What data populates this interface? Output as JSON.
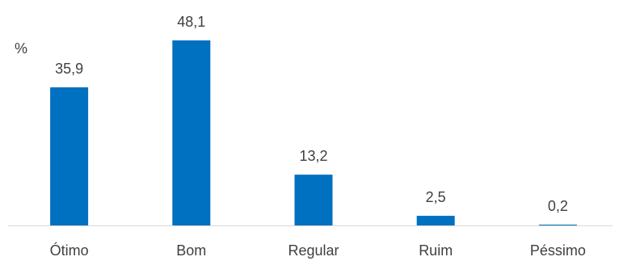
{
  "chart_data": {
    "type": "bar",
    "ylabel": "%",
    "categories": [
      "Ótimo",
      "Bom",
      "Regular",
      "Ruim",
      "Péssimo"
    ],
    "values": [
      35.9,
      48.1,
      13.2,
      2.5,
      0.2
    ],
    "data_labels": [
      "35,9",
      "48,1",
      "13,2",
      "2,5",
      "0,2"
    ],
    "ylim": [
      0,
      48.1
    ],
    "grid": false,
    "legend": "none",
    "bar_color": "#0070C0",
    "axis_color": "#D9D9D9",
    "text_color": "#404040"
  }
}
